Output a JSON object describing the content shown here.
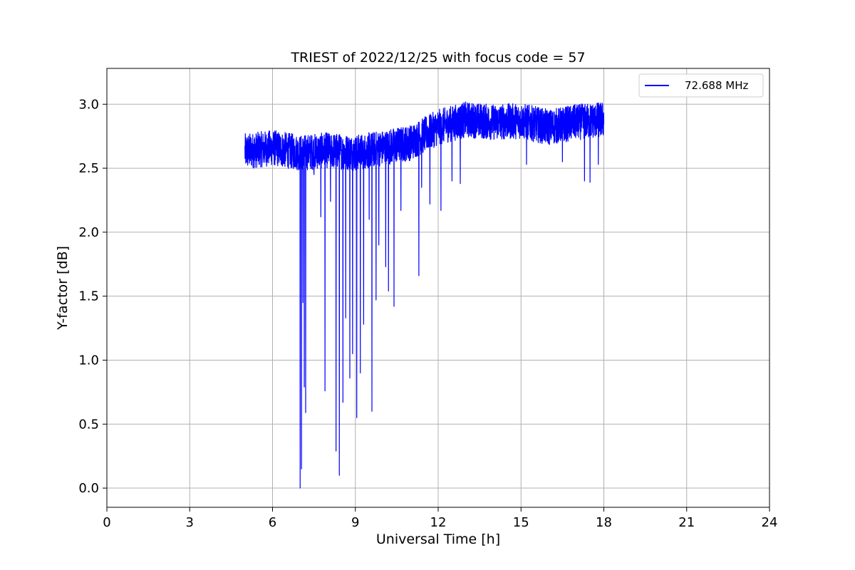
{
  "chart_data": {
    "type": "line",
    "title": "TRIEST of 2022/12/25 with focus code = 57",
    "xlabel": "Universal Time [h]",
    "ylabel": "Y-factor [dB]",
    "xlim": [
      0,
      24
    ],
    "ylim": [
      -0.15,
      3.28
    ],
    "xticks": [
      0,
      3,
      6,
      9,
      12,
      15,
      18,
      21,
      24
    ],
    "yticks": [
      0.0,
      0.5,
      1.0,
      1.5,
      2.0,
      2.5,
      3.0
    ],
    "xtick_labels": [
      "0",
      "3",
      "6",
      "9",
      "12",
      "15",
      "18",
      "21",
      "24"
    ],
    "ytick_labels": [
      "0.0",
      "0.5",
      "1.0",
      "1.5",
      "2.0",
      "2.5",
      "3.0"
    ],
    "grid": true,
    "legend_position": "top-right",
    "series": [
      {
        "name": "72.688 MHz",
        "color": "#0000ff",
        "x_range": [
          5.0,
          18.0
        ],
        "baseline": [
          {
            "x": 5.0,
            "y": 2.63
          },
          {
            "x": 6.0,
            "y": 2.66
          },
          {
            "x": 7.0,
            "y": 2.62
          },
          {
            "x": 8.0,
            "y": 2.64
          },
          {
            "x": 9.0,
            "y": 2.62
          },
          {
            "x": 10.0,
            "y": 2.66
          },
          {
            "x": 11.0,
            "y": 2.7
          },
          {
            "x": 12.0,
            "y": 2.82
          },
          {
            "x": 13.0,
            "y": 2.88
          },
          {
            "x": 14.0,
            "y": 2.86
          },
          {
            "x": 15.0,
            "y": 2.87
          },
          {
            "x": 16.0,
            "y": 2.82
          },
          {
            "x": 17.0,
            "y": 2.86
          },
          {
            "x": 18.0,
            "y": 2.88
          }
        ],
        "noise_amplitude": 0.14,
        "dips": [
          {
            "x": 7.0,
            "y": 0.0
          },
          {
            "x": 7.05,
            "y": 0.15
          },
          {
            "x": 7.1,
            "y": 1.45
          },
          {
            "x": 7.15,
            "y": 0.79
          },
          {
            "x": 7.2,
            "y": 0.59
          },
          {
            "x": 7.5,
            "y": 2.45
          },
          {
            "x": 7.75,
            "y": 2.12
          },
          {
            "x": 7.9,
            "y": 0.76
          },
          {
            "x": 8.1,
            "y": 2.24
          },
          {
            "x": 8.3,
            "y": 0.29
          },
          {
            "x": 8.42,
            "y": 0.1
          },
          {
            "x": 8.55,
            "y": 0.67
          },
          {
            "x": 8.65,
            "y": 1.33
          },
          {
            "x": 8.8,
            "y": 0.86
          },
          {
            "x": 8.9,
            "y": 1.05
          },
          {
            "x": 9.05,
            "y": 0.55
          },
          {
            "x": 9.18,
            "y": 0.9
          },
          {
            "x": 9.3,
            "y": 1.28
          },
          {
            "x": 9.5,
            "y": 2.1
          },
          {
            "x": 9.6,
            "y": 0.6
          },
          {
            "x": 9.75,
            "y": 1.47
          },
          {
            "x": 9.85,
            "y": 1.9
          },
          {
            "x": 10.1,
            "y": 1.73
          },
          {
            "x": 10.2,
            "y": 1.54
          },
          {
            "x": 10.4,
            "y": 1.42
          },
          {
            "x": 10.65,
            "y": 2.17
          },
          {
            "x": 11.3,
            "y": 1.66
          },
          {
            "x": 11.4,
            "y": 2.35
          },
          {
            "x": 11.7,
            "y": 2.22
          },
          {
            "x": 12.1,
            "y": 2.17
          },
          {
            "x": 12.5,
            "y": 2.4
          },
          {
            "x": 12.8,
            "y": 2.38
          },
          {
            "x": 15.2,
            "y": 2.53
          },
          {
            "x": 16.5,
            "y": 2.55
          },
          {
            "x": 17.3,
            "y": 2.4
          },
          {
            "x": 17.5,
            "y": 2.39
          },
          {
            "x": 17.8,
            "y": 2.53
          }
        ]
      }
    ]
  }
}
